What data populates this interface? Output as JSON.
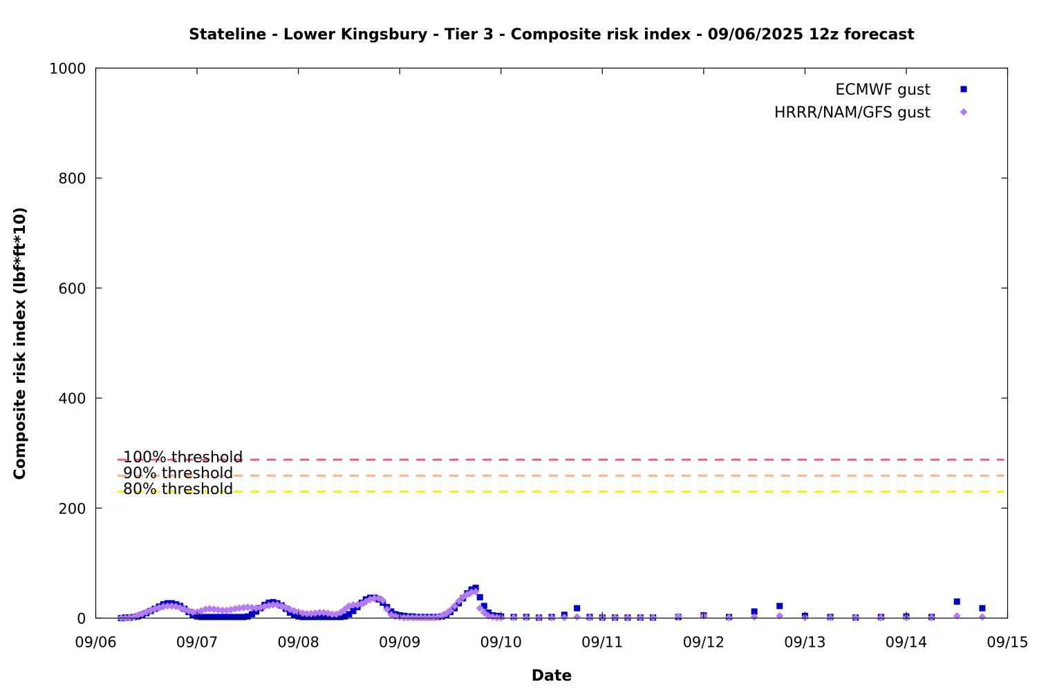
{
  "chart_data": {
    "type": "scatter",
    "title": "Stateline - Lower Kingsbury - Tier 3 - Composite risk index - 09/06/2025 12z forecast",
    "xlabel": "Date",
    "ylabel": "Composite risk index (lbf*ft*10)",
    "x_axis": {
      "type": "date",
      "min": "2025-09-06T00:00",
      "max": "2025-09-15T00:00",
      "tick_labels": [
        "09/06",
        "09/07",
        "09/08",
        "09/09",
        "09/10",
        "09/11",
        "09/12",
        "09/13",
        "09/14",
        "09/15"
      ]
    },
    "y_axis": {
      "min": 0,
      "max": 1000,
      "tick_labels": [
        "0",
        "200",
        "400",
        "600",
        "800",
        "1000"
      ]
    },
    "grid": false,
    "legend_position": "top-right",
    "thresholds": [
      {
        "label": "100% threshold",
        "value": 288,
        "color": "#e06680"
      },
      {
        "label": "90% threshold",
        "value": 259,
        "color": "#ffb380"
      },
      {
        "label": "80% threshold",
        "value": 230,
        "color": "#ffee00"
      }
    ],
    "series": [
      {
        "name": "ECMWF gust",
        "marker": "square",
        "color": "#0000c8",
        "points": [
          [
            "2025-09-06T06:00",
            0
          ],
          [
            "2025-09-06T07:00",
            1
          ],
          [
            "2025-09-06T08:00",
            1
          ],
          [
            "2025-09-06T09:00",
            2
          ],
          [
            "2025-09-06T10:00",
            3
          ],
          [
            "2025-09-06T11:00",
            6
          ],
          [
            "2025-09-06T12:00",
            9
          ],
          [
            "2025-09-06T13:00",
            13
          ],
          [
            "2025-09-06T14:00",
            17
          ],
          [
            "2025-09-06T15:00",
            21
          ],
          [
            "2025-09-06T16:00",
            25
          ],
          [
            "2025-09-06T17:00",
            27
          ],
          [
            "2025-09-06T18:00",
            27
          ],
          [
            "2025-09-06T19:00",
            25
          ],
          [
            "2025-09-06T20:00",
            22
          ],
          [
            "2025-09-06T21:00",
            17
          ],
          [
            "2025-09-06T22:00",
            11
          ],
          [
            "2025-09-06T23:00",
            6
          ],
          [
            "2025-09-07T00:00",
            3
          ],
          [
            "2025-09-07T01:00",
            2
          ],
          [
            "2025-09-07T02:00",
            2
          ],
          [
            "2025-09-07T03:00",
            2
          ],
          [
            "2025-09-07T04:00",
            2
          ],
          [
            "2025-09-07T05:00",
            2
          ],
          [
            "2025-09-07T06:00",
            2
          ],
          [
            "2025-09-07T07:00",
            2
          ],
          [
            "2025-09-07T08:00",
            2
          ],
          [
            "2025-09-07T09:00",
            2
          ],
          [
            "2025-09-07T10:00",
            2
          ],
          [
            "2025-09-07T11:00",
            2
          ],
          [
            "2025-09-07T12:00",
            3
          ],
          [
            "2025-09-07T13:00",
            7
          ],
          [
            "2025-09-07T14:00",
            12
          ],
          [
            "2025-09-07T15:00",
            18
          ],
          [
            "2025-09-07T16:00",
            24
          ],
          [
            "2025-09-07T17:00",
            28
          ],
          [
            "2025-09-07T18:00",
            29
          ],
          [
            "2025-09-07T19:00",
            27
          ],
          [
            "2025-09-07T20:00",
            23
          ],
          [
            "2025-09-07T21:00",
            17
          ],
          [
            "2025-09-07T22:00",
            10
          ],
          [
            "2025-09-07T23:00",
            5
          ],
          [
            "2025-09-08T00:00",
            3
          ],
          [
            "2025-09-08T01:00",
            2
          ],
          [
            "2025-09-08T02:00",
            2
          ],
          [
            "2025-09-08T03:00",
            2
          ],
          [
            "2025-09-08T04:00",
            2
          ],
          [
            "2025-09-08T05:00",
            2
          ],
          [
            "2025-09-08T06:00",
            2
          ],
          [
            "2025-09-08T07:00",
            2
          ],
          [
            "2025-09-08T08:00",
            2
          ],
          [
            "2025-09-08T09:00",
            2
          ],
          [
            "2025-09-08T10:00",
            2
          ],
          [
            "2025-09-08T11:00",
            3
          ],
          [
            "2025-09-08T12:00",
            7
          ],
          [
            "2025-09-08T13:00",
            13
          ],
          [
            "2025-09-08T14:00",
            20
          ],
          [
            "2025-09-08T15:00",
            28
          ],
          [
            "2025-09-08T16:00",
            34
          ],
          [
            "2025-09-08T17:00",
            37
          ],
          [
            "2025-09-08T18:00",
            37
          ],
          [
            "2025-09-08T19:00",
            34
          ],
          [
            "2025-09-08T20:00",
            28
          ],
          [
            "2025-09-08T21:00",
            20
          ],
          [
            "2025-09-08T22:00",
            12
          ],
          [
            "2025-09-08T23:00",
            7
          ],
          [
            "2025-09-09T00:00",
            5
          ],
          [
            "2025-09-09T01:00",
            4
          ],
          [
            "2025-09-09T02:00",
            3
          ],
          [
            "2025-09-09T03:00",
            3
          ],
          [
            "2025-09-09T04:00",
            2
          ],
          [
            "2025-09-09T05:00",
            2
          ],
          [
            "2025-09-09T06:00",
            2
          ],
          [
            "2025-09-09T07:00",
            2
          ],
          [
            "2025-09-09T08:00",
            2
          ],
          [
            "2025-09-09T09:00",
            2
          ],
          [
            "2025-09-09T10:00",
            3
          ],
          [
            "2025-09-09T11:00",
            6
          ],
          [
            "2025-09-09T12:00",
            11
          ],
          [
            "2025-09-09T13:00",
            18
          ],
          [
            "2025-09-09T14:00",
            27
          ],
          [
            "2025-09-09T15:00",
            36
          ],
          [
            "2025-09-09T16:00",
            45
          ],
          [
            "2025-09-09T17:00",
            52
          ],
          [
            "2025-09-09T18:00",
            55
          ],
          [
            "2025-09-09T19:00",
            38
          ],
          [
            "2025-09-09T20:00",
            22
          ],
          [
            "2025-09-09T21:00",
            10
          ],
          [
            "2025-09-09T22:00",
            5
          ],
          [
            "2025-09-09T23:00",
            4
          ],
          [
            "2025-09-10T00:00",
            3
          ],
          [
            "2025-09-10T03:00",
            2
          ],
          [
            "2025-09-10T06:00",
            2
          ],
          [
            "2025-09-10T09:00",
            1
          ],
          [
            "2025-09-10T12:00",
            2
          ],
          [
            "2025-09-10T15:00",
            6
          ],
          [
            "2025-09-10T18:00",
            18
          ],
          [
            "2025-09-10T21:00",
            2
          ],
          [
            "2025-09-11T00:00",
            1
          ],
          [
            "2025-09-11T03:00",
            1
          ],
          [
            "2025-09-11T06:00",
            1
          ],
          [
            "2025-09-11T09:00",
            1
          ],
          [
            "2025-09-11T12:00",
            1
          ],
          [
            "2025-09-11T18:00",
            2
          ],
          [
            "2025-09-12T00:00",
            5
          ],
          [
            "2025-09-12T06:00",
            2
          ],
          [
            "2025-09-12T12:00",
            12
          ],
          [
            "2025-09-12T18:00",
            22
          ],
          [
            "2025-09-13T00:00",
            4
          ],
          [
            "2025-09-13T06:00",
            2
          ],
          [
            "2025-09-13T12:00",
            1
          ],
          [
            "2025-09-13T18:00",
            2
          ],
          [
            "2025-09-14T00:00",
            3
          ],
          [
            "2025-09-14T06:00",
            2
          ],
          [
            "2025-09-14T12:00",
            30
          ],
          [
            "2025-09-14T18:00",
            18
          ]
        ]
      },
      {
        "name": "HRRR/NAM/GFS gust",
        "marker": "diamond",
        "color": "#b57cf5",
        "points": [
          [
            "2025-09-06T06:00",
            0
          ],
          [
            "2025-09-06T07:00",
            0
          ],
          [
            "2025-09-06T08:00",
            1
          ],
          [
            "2025-09-06T09:00",
            2
          ],
          [
            "2025-09-06T10:00",
            5
          ],
          [
            "2025-09-06T11:00",
            8
          ],
          [
            "2025-09-06T12:00",
            11
          ],
          [
            "2025-09-06T13:00",
            14
          ],
          [
            "2025-09-06T14:00",
            17
          ],
          [
            "2025-09-06T15:00",
            19
          ],
          [
            "2025-09-06T16:00",
            21
          ],
          [
            "2025-09-06T17:00",
            22
          ],
          [
            "2025-09-06T18:00",
            22
          ],
          [
            "2025-09-06T19:00",
            21
          ],
          [
            "2025-09-06T20:00",
            19
          ],
          [
            "2025-09-06T21:00",
            16
          ],
          [
            "2025-09-06T22:00",
            13
          ],
          [
            "2025-09-06T23:00",
            11
          ],
          [
            "2025-09-07T00:00",
            11
          ],
          [
            "2025-09-07T01:00",
            13
          ],
          [
            "2025-09-07T02:00",
            16
          ],
          [
            "2025-09-07T03:00",
            17
          ],
          [
            "2025-09-07T04:00",
            16
          ],
          [
            "2025-09-07T05:00",
            15
          ],
          [
            "2025-09-07T06:00",
            14
          ],
          [
            "2025-09-07T07:00",
            14
          ],
          [
            "2025-09-07T08:00",
            15
          ],
          [
            "2025-09-07T09:00",
            17
          ],
          [
            "2025-09-07T10:00",
            18
          ],
          [
            "2025-09-07T11:00",
            19
          ],
          [
            "2025-09-07T12:00",
            20
          ],
          [
            "2025-09-07T13:00",
            19
          ],
          [
            "2025-09-07T14:00",
            18
          ],
          [
            "2025-09-07T15:00",
            19
          ],
          [
            "2025-09-07T16:00",
            21
          ],
          [
            "2025-09-07T17:00",
            23
          ],
          [
            "2025-09-07T18:00",
            24
          ],
          [
            "2025-09-07T19:00",
            24
          ],
          [
            "2025-09-07T20:00",
            22
          ],
          [
            "2025-09-07T21:00",
            19
          ],
          [
            "2025-09-07T22:00",
            16
          ],
          [
            "2025-09-07T23:00",
            13
          ],
          [
            "2025-09-08T00:00",
            11
          ],
          [
            "2025-09-08T01:00",
            9
          ],
          [
            "2025-09-08T02:00",
            8
          ],
          [
            "2025-09-08T03:00",
            8
          ],
          [
            "2025-09-08T04:00",
            9
          ],
          [
            "2025-09-08T05:00",
            10
          ],
          [
            "2025-09-08T06:00",
            10
          ],
          [
            "2025-09-08T07:00",
            9
          ],
          [
            "2025-09-08T08:00",
            7
          ],
          [
            "2025-09-08T09:00",
            7
          ],
          [
            "2025-09-08T10:00",
            10
          ],
          [
            "2025-09-08T11:00",
            16
          ],
          [
            "2025-09-08T12:00",
            22
          ],
          [
            "2025-09-08T13:00",
            24
          ],
          [
            "2025-09-08T14:00",
            24
          ],
          [
            "2025-09-08T15:00",
            26
          ],
          [
            "2025-09-08T16:00",
            30
          ],
          [
            "2025-09-08T17:00",
            34
          ],
          [
            "2025-09-08T18:00",
            36
          ],
          [
            "2025-09-08T19:00",
            36
          ],
          [
            "2025-09-08T20:00",
            32
          ],
          [
            "2025-09-08T21:00",
            16
          ],
          [
            "2025-09-08T22:00",
            6
          ],
          [
            "2025-09-08T23:00",
            3
          ],
          [
            "2025-09-09T00:00",
            2
          ],
          [
            "2025-09-09T01:00",
            1
          ],
          [
            "2025-09-09T02:00",
            1
          ],
          [
            "2025-09-09T03:00",
            1
          ],
          [
            "2025-09-09T04:00",
            1
          ],
          [
            "2025-09-09T05:00",
            1
          ],
          [
            "2025-09-09T06:00",
            1
          ],
          [
            "2025-09-09T07:00",
            1
          ],
          [
            "2025-09-09T08:00",
            1
          ],
          [
            "2025-09-09T09:00",
            2
          ],
          [
            "2025-09-09T10:00",
            4
          ],
          [
            "2025-09-09T11:00",
            8
          ],
          [
            "2025-09-09T12:00",
            14
          ],
          [
            "2025-09-09T13:00",
            22
          ],
          [
            "2025-09-09T14:00",
            31
          ],
          [
            "2025-09-09T15:00",
            38
          ],
          [
            "2025-09-09T16:00",
            43
          ],
          [
            "2025-09-09T17:00",
            47
          ],
          [
            "2025-09-09T18:00",
            48
          ],
          [
            "2025-09-09T19:00",
            18
          ],
          [
            "2025-09-09T20:00",
            10
          ],
          [
            "2025-09-09T21:00",
            4
          ],
          [
            "2025-09-09T22:00",
            2
          ],
          [
            "2025-09-09T23:00",
            1
          ],
          [
            "2025-09-10T00:00",
            1
          ],
          [
            "2025-09-10T03:00",
            1
          ],
          [
            "2025-09-10T06:00",
            1
          ],
          [
            "2025-09-10T09:00",
            1
          ],
          [
            "2025-09-10T12:00",
            1
          ],
          [
            "2025-09-10T15:00",
            1
          ],
          [
            "2025-09-10T18:00",
            2
          ],
          [
            "2025-09-10T21:00",
            1
          ],
          [
            "2025-09-11T00:00",
            1
          ],
          [
            "2025-09-11T03:00",
            1
          ],
          [
            "2025-09-11T06:00",
            1
          ],
          [
            "2025-09-11T09:00",
            1
          ],
          [
            "2025-09-11T12:00",
            1
          ],
          [
            "2025-09-11T18:00",
            3
          ],
          [
            "2025-09-12T00:00",
            4
          ],
          [
            "2025-09-12T06:00",
            1
          ],
          [
            "2025-09-12T12:00",
            2
          ],
          [
            "2025-09-12T18:00",
            4
          ],
          [
            "2025-09-13T00:00",
            1
          ],
          [
            "2025-09-13T06:00",
            1
          ],
          [
            "2025-09-13T12:00",
            1
          ],
          [
            "2025-09-13T18:00",
            1
          ],
          [
            "2025-09-14T00:00",
            1
          ],
          [
            "2025-09-14T06:00",
            1
          ],
          [
            "2025-09-14T12:00",
            4
          ],
          [
            "2025-09-14T18:00",
            2
          ]
        ]
      }
    ]
  }
}
